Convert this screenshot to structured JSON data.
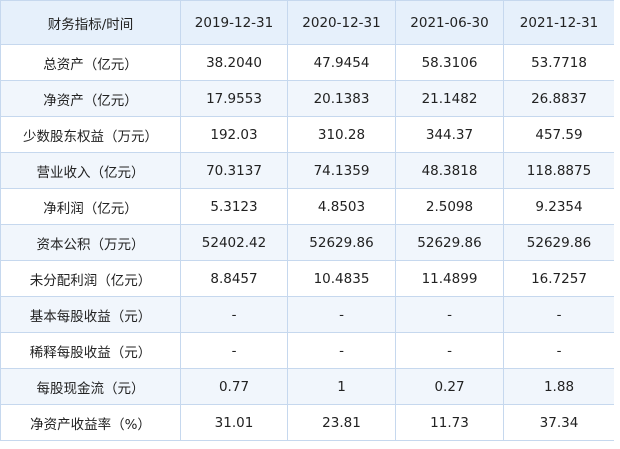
{
  "table": {
    "header": [
      "财务指标/时间",
      "2019-12-31",
      "2020-12-31",
      "2021-06-30",
      "2021-12-31"
    ],
    "rows": [
      [
        "总资产（亿元）",
        "38.2040",
        "47.9454",
        "58.3106",
        "53.7718"
      ],
      [
        "净资产（亿元）",
        "17.9553",
        "20.1383",
        "21.1482",
        "26.8837"
      ],
      [
        "少数股东权益（万元）",
        "192.03",
        "310.28",
        "344.37",
        "457.59"
      ],
      [
        "营业收入（亿元）",
        "70.3137",
        "74.1359",
        "48.3818",
        "118.8875"
      ],
      [
        "净利润（亿元）",
        "5.3123",
        "4.8503",
        "2.5098",
        "9.2354"
      ],
      [
        "资本公积（万元）",
        "52402.42",
        "52629.86",
        "52629.86",
        "52629.86"
      ],
      [
        "未分配利润（亿元）",
        "8.8457",
        "10.4835",
        "11.4899",
        "16.7257"
      ],
      [
        "基本每股收益（元）",
        "-",
        "-",
        "-",
        "-"
      ],
      [
        "稀释每股收益（元）",
        "-",
        "-",
        "-",
        "-"
      ],
      [
        "每股现金流（元）",
        "0.77",
        "1",
        "0.27",
        "1.88"
      ],
      [
        "净资产收益率（%）",
        "31.01",
        "23.81",
        "11.73",
        "37.34"
      ]
    ]
  },
  "colors": {
    "header_bg": "#e6f0fb",
    "alt_row_bg": "#f1f6fc",
    "border": "#c6d8ee"
  }
}
